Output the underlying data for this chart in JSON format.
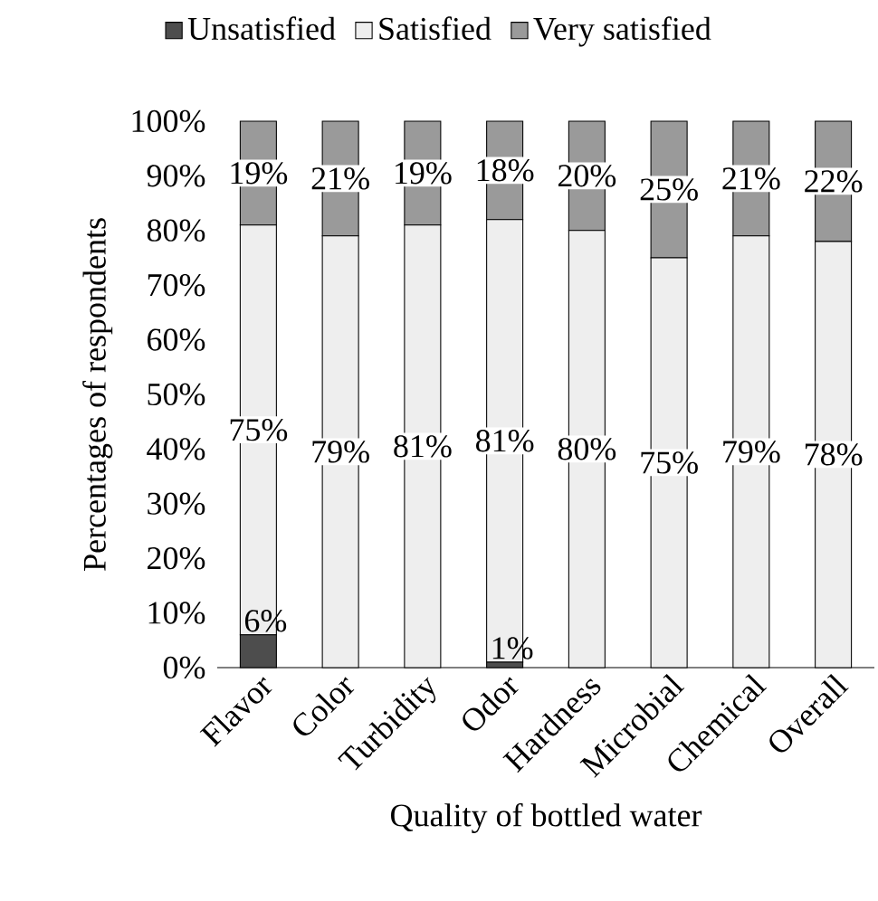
{
  "chart_data": {
    "type": "bar",
    "stacked": true,
    "categories": [
      "Flavor",
      "Color",
      "Turbidity",
      "Odor",
      "Hardness",
      "Microbial",
      "Chemical",
      "Overall"
    ],
    "xlabel": "Quality of bottled water",
    "ylabel": "Percentages of respondents",
    "ylim": [
      0,
      100
    ],
    "yticks": [
      {
        "value": 0,
        "label": "0%"
      },
      {
        "value": 10,
        "label": "10%"
      },
      {
        "value": 20,
        "label": "20%"
      },
      {
        "value": 30,
        "label": "30%"
      },
      {
        "value": 40,
        "label": "40%"
      },
      {
        "value": 50,
        "label": "50%"
      },
      {
        "value": 60,
        "label": "60%"
      },
      {
        "value": 70,
        "label": "70%"
      },
      {
        "value": 80,
        "label": "80%"
      },
      {
        "value": 90,
        "label": "90%"
      },
      {
        "value": 100,
        "label": "100%"
      }
    ],
    "legend": "top",
    "series": [
      {
        "name": "Unsatisfied",
        "color": "#4d4d4d",
        "values": [
          6,
          0,
          0,
          1,
          0,
          0,
          0,
          0
        ],
        "value_labels": [
          "6%",
          null,
          null,
          "1%",
          null,
          null,
          null,
          null
        ]
      },
      {
        "name": "Satisfied",
        "color": "#eeeeee",
        "values": [
          75,
          79,
          81,
          81,
          80,
          75,
          79,
          78
        ],
        "value_labels": [
          "75%",
          "79%",
          "81%",
          "81%",
          "80%",
          "75%",
          "79%",
          "78%"
        ]
      },
      {
        "name": "Very satisfied",
        "color": "#9a9a9a",
        "values": [
          19,
          21,
          19,
          18,
          20,
          25,
          21,
          22
        ],
        "value_labels": [
          "19%",
          "21%",
          "19%",
          "18%",
          "20%",
          "25%",
          "21%",
          "22%"
        ]
      }
    ]
  }
}
